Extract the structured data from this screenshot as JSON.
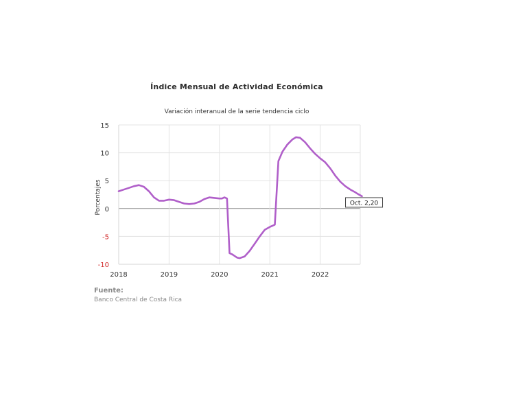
{
  "chart_data": {
    "type": "line",
    "title": "Índice Mensual de  Actividad Económica",
    "subtitle": "Variación interanual de la serie tendencia ciclo",
    "ylabel": "Porcentajes",
    "xlabel": "",
    "ylim": [
      -10,
      15
    ],
    "yticks": [
      15,
      10,
      5,
      0,
      -5,
      -10
    ],
    "xticks": [
      "2018",
      "2019",
      "2020",
      "2021",
      "2022"
    ],
    "grid": true,
    "series": [
      {
        "color": "#b05fc9",
        "points": [
          [
            2018.0,
            3.1
          ],
          [
            2018.1,
            3.4
          ],
          [
            2018.2,
            3.7
          ],
          [
            2018.3,
            4.0
          ],
          [
            2018.4,
            4.2
          ],
          [
            2018.5,
            3.9
          ],
          [
            2018.6,
            3.1
          ],
          [
            2018.7,
            2.0
          ],
          [
            2018.8,
            1.4
          ],
          [
            2018.9,
            1.4
          ],
          [
            2019.0,
            1.6
          ],
          [
            2019.1,
            1.5
          ],
          [
            2019.2,
            1.2
          ],
          [
            2019.3,
            0.9
          ],
          [
            2019.4,
            0.8
          ],
          [
            2019.5,
            0.9
          ],
          [
            2019.6,
            1.2
          ],
          [
            2019.7,
            1.7
          ],
          [
            2019.8,
            2.0
          ],
          [
            2019.9,
            1.9
          ],
          [
            2020.0,
            1.8
          ],
          [
            2020.05,
            1.8
          ],
          [
            2020.1,
            2.0
          ],
          [
            2020.15,
            1.8
          ],
          [
            2020.2,
            -8.0
          ],
          [
            2020.25,
            -8.2
          ],
          [
            2020.3,
            -8.5
          ],
          [
            2020.35,
            -8.8
          ],
          [
            2020.4,
            -8.9
          ],
          [
            2020.5,
            -8.6
          ],
          [
            2020.6,
            -7.6
          ],
          [
            2020.7,
            -6.3
          ],
          [
            2020.8,
            -5.0
          ],
          [
            2020.9,
            -3.8
          ],
          [
            2021.0,
            -3.3
          ],
          [
            2021.05,
            -3.1
          ],
          [
            2021.1,
            -2.9
          ],
          [
            2021.17,
            8.5
          ],
          [
            2021.25,
            10.2
          ],
          [
            2021.35,
            11.5
          ],
          [
            2021.45,
            12.4
          ],
          [
            2021.52,
            12.8
          ],
          [
            2021.6,
            12.7
          ],
          [
            2021.7,
            11.9
          ],
          [
            2021.8,
            10.8
          ],
          [
            2021.9,
            9.8
          ],
          [
            2022.0,
            9.0
          ],
          [
            2022.1,
            8.3
          ],
          [
            2022.2,
            7.2
          ],
          [
            2022.3,
            5.9
          ],
          [
            2022.4,
            4.8
          ],
          [
            2022.5,
            4.0
          ],
          [
            2022.6,
            3.4
          ],
          [
            2022.7,
            2.9
          ],
          [
            2022.75,
            2.6
          ],
          [
            2022.83,
            2.2
          ]
        ]
      }
    ],
    "annotation": {
      "text": "Oct. 2,20",
      "x": 2022.83,
      "y": 2.2
    }
  },
  "source": {
    "heading": "Fuente:",
    "text": "Banco Central de Costa Rica"
  }
}
